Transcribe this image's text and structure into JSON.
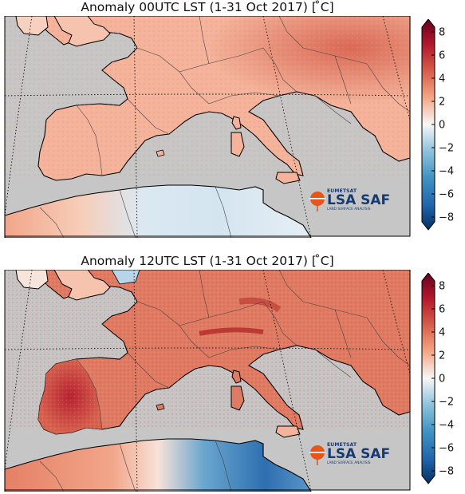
{
  "panels": [
    {
      "title": "Anomaly 00UTC LST (1-31 Oct 2017) [$^\\circ$C]",
      "title_display": "Anomaly 00UTC LST (1-31 Oct 2017) [ ̊C]",
      "period": "1-31 Oct 2017",
      "time": "00UTC",
      "variable": "LST"
    },
    {
      "title_display": "Anomaly 12UTC LST (1-31 Oct 2017) [ ̊C]",
      "period": "1-31 Oct 2017",
      "time": "12UTC",
      "variable": "LST"
    }
  ],
  "colorbar": {
    "ticks": [
      "8",
      "6",
      "4",
      "2",
      "0",
      "−2",
      "−4",
      "−6",
      "−8"
    ],
    "min": -8,
    "max": 8,
    "colors": {
      "high": "#67001f",
      "mid": "#f7f7f7",
      "low": "#053061"
    }
  },
  "logo": {
    "top": "EUMETSAT",
    "main": "LSA SAF",
    "sub": "LAND SURFACE ANALYSIS",
    "accent_color": "#e8551a",
    "text_color": "#163a73"
  },
  "map_colors": {
    "sea": "#c6c6c6",
    "border": "#000000"
  }
}
